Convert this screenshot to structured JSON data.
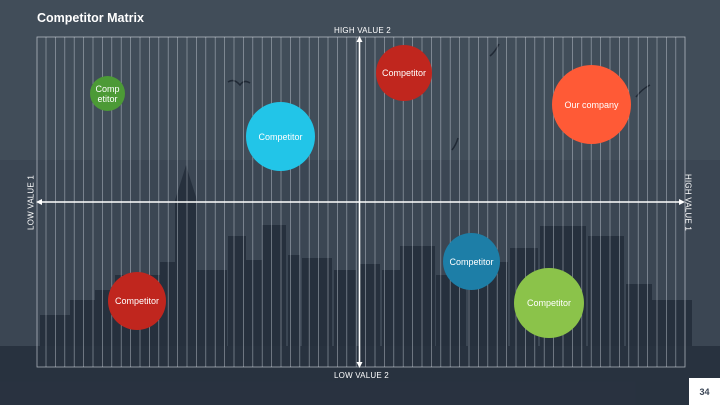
{
  "slide": {
    "title": "Competitor Matrix",
    "page_number": "34"
  },
  "axes": {
    "top": "HIGH VALUE 2",
    "bottom": "LOW VALUE 2",
    "left": "LOW VALUE 1",
    "right": "HIGH VALUE 1"
  },
  "bubbles": [
    {
      "label": "Competitor",
      "color": "#4c9a36"
    },
    {
      "label": "Competitor",
      "color": "#c0261e"
    },
    {
      "label": "Competitor",
      "color": "#22c5e8"
    },
    {
      "label": "Our company",
      "color": "#ff5a36"
    },
    {
      "label": "Competitor",
      "color": "#c0261e"
    },
    {
      "label": "Competitor",
      "color": "#1d7ea7"
    },
    {
      "label": "Competitor",
      "color": "#8bc34a"
    }
  ],
  "colors": {
    "grid": "#dfe5ec",
    "axis": "#ffffff"
  }
}
